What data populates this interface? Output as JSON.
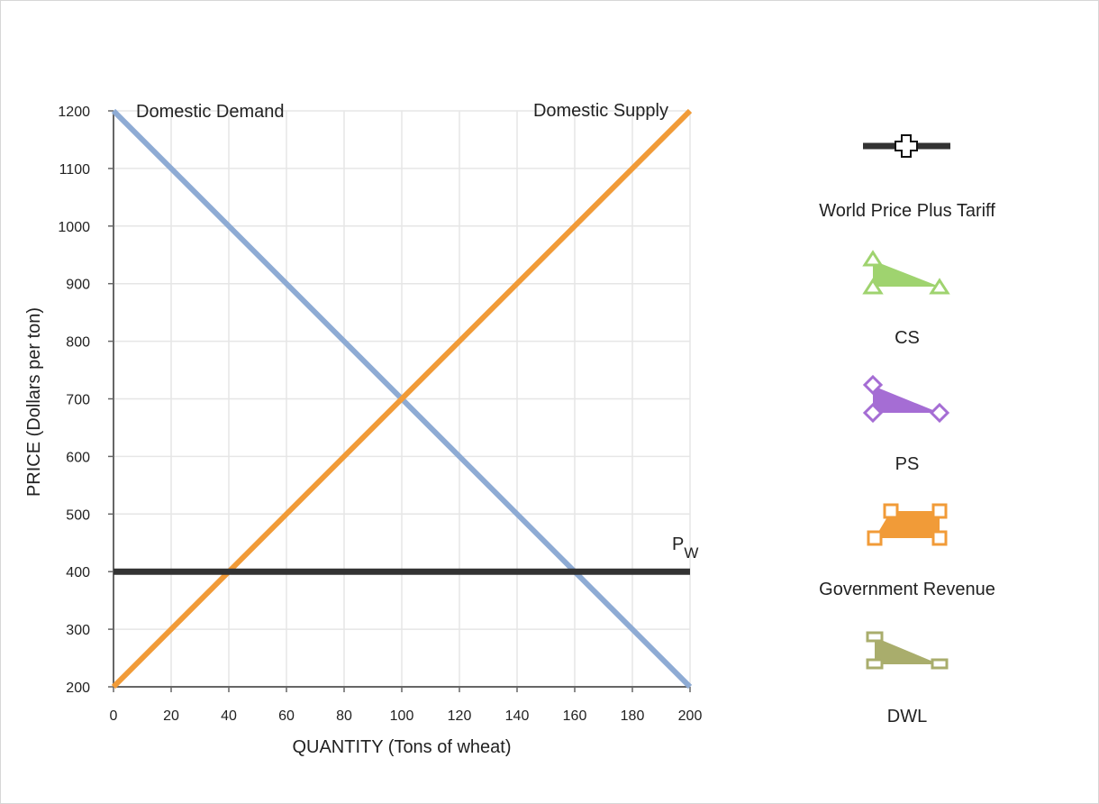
{
  "chart_data": {
    "type": "line",
    "xlabel": "QUANTITY (Tons of wheat)",
    "ylabel": "PRICE (Dollars per ton)",
    "xlim": [
      0,
      200
    ],
    "ylim": [
      200,
      1200
    ],
    "x_ticks": [
      0,
      20,
      40,
      60,
      80,
      100,
      120,
      140,
      160,
      180,
      200
    ],
    "y_ticks": [
      200,
      300,
      400,
      500,
      600,
      700,
      800,
      900,
      1000,
      1100,
      1200
    ],
    "grid": true,
    "series": [
      {
        "name": "Domestic Demand",
        "color": "#8eabd4",
        "points": [
          [
            0,
            1200
          ],
          [
            200,
            200
          ]
        ]
      },
      {
        "name": "Domestic Supply",
        "color": "#f19b38",
        "points": [
          [
            0,
            200
          ],
          [
            200,
            1200
          ]
        ]
      },
      {
        "name": "P",
        "subscript": "W",
        "color": "#333333",
        "points": [
          [
            0,
            400
          ],
          [
            200,
            400
          ]
        ]
      }
    ]
  },
  "legend": {
    "items": [
      {
        "name": "world-price-plus-tariff",
        "label": "World Price Plus Tariff",
        "color": "#333333"
      },
      {
        "name": "cs",
        "label": "CS",
        "color": "#9fd36f"
      },
      {
        "name": "ps",
        "label": "PS",
        "color": "#a56dd4"
      },
      {
        "name": "government-revenue",
        "label": "Government Revenue",
        "color": "#f19b38"
      },
      {
        "name": "dwl",
        "label": "DWL",
        "color": "#a9ad6c"
      }
    ]
  }
}
